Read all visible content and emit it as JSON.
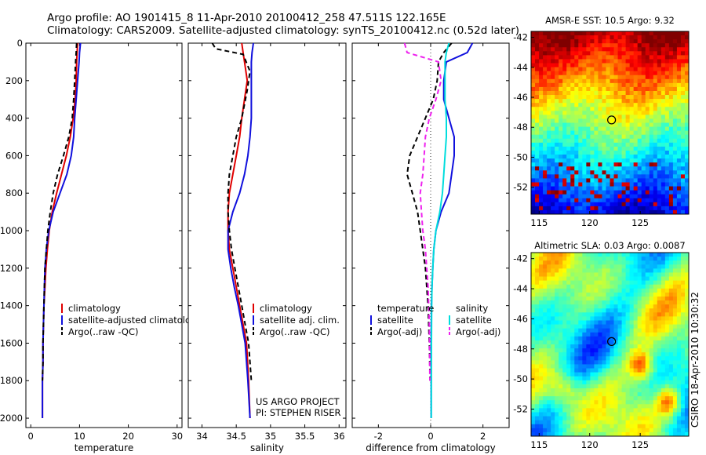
{
  "header": {
    "line1": "Argo profile: AO 1901415_8 11-Apr-2010 20100412_258 47.511S 122.165E",
    "line2": "Climatology: CARS2009. Satellite-adjusted climatology: synTS_20100412.nc (0.52d later)"
  },
  "colors": {
    "climatology": "#e00000",
    "satellite": "#1010dd",
    "argo": "#000000",
    "satellite_diff": "#00dddd",
    "argo_sal_diff": "#ee22ee"
  },
  "side_text": "CSIRO 18-Apr-2010 10:30:32",
  "project_text": [
    "US ARGO PROJECT",
    "PI: STEPHEN RISER"
  ],
  "chart_data": [
    {
      "id": "temperature",
      "type": "line",
      "xlabel": "temperature",
      "xlim": [
        -1,
        31
      ],
      "xticks": [
        0,
        10,
        20,
        30
      ],
      "ylim": [
        0,
        2050
      ],
      "yticks": [
        0,
        200,
        400,
        600,
        800,
        1000,
        1200,
        1400,
        1600,
        1800,
        2000
      ],
      "y_reversed": true,
      "legend": {
        "position": "bottom-center",
        "title": [],
        "entries": [
          "climatology",
          "satellite-adjusted climatology",
          "Argo(..raw -QC)"
        ]
      },
      "series": [
        {
          "name": "climatology",
          "style": "solid",
          "color_key": "climatology",
          "x": [
            9.6,
            9.5,
            9.4,
            9.3,
            9.1,
            8.7,
            8.1,
            7.3,
            6.3,
            5.3,
            4.4,
            3.8,
            3.4,
            3.1,
            2.9,
            2.7,
            2.6,
            2.5,
            2.5,
            2.4,
            2.4
          ],
          "y": [
            0,
            50,
            100,
            200,
            300,
            400,
            500,
            600,
            700,
            800,
            900,
            1000,
            1100,
            1200,
            1300,
            1400,
            1500,
            1600,
            1700,
            1800,
            2000
          ]
        },
        {
          "name": "satellite-adjusted climatology",
          "style": "solid",
          "color_key": "satellite",
          "x": [
            10.2,
            10.0,
            9.9,
            9.6,
            9.3,
            9.0,
            8.8,
            8.3,
            7.4,
            6.0,
            4.6,
            3.7,
            3.2,
            2.9,
            2.8,
            2.7,
            2.6,
            2.5,
            2.5,
            2.4,
            2.4
          ],
          "y": [
            0,
            50,
            100,
            200,
            300,
            400,
            500,
            600,
            700,
            800,
            900,
            1000,
            1100,
            1200,
            1300,
            1400,
            1500,
            1600,
            1700,
            1800,
            2000
          ]
        },
        {
          "name": "Argo(..raw -QC)",
          "style": "dashed",
          "color_key": "argo",
          "x": [
            9.4,
            9.3,
            9.2,
            9.0,
            8.8,
            8.5,
            7.8,
            6.7,
            5.5,
            4.6,
            4.0,
            3.5,
            3.2,
            2.9,
            2.8,
            2.7,
            2.6,
            2.5,
            2.5,
            2.4
          ],
          "y": [
            0,
            50,
            100,
            200,
            300,
            400,
            500,
            600,
            700,
            800,
            900,
            1000,
            1100,
            1200,
            1300,
            1400,
            1500,
            1600,
            1700,
            1800
          ]
        }
      ]
    },
    {
      "id": "salinity",
      "type": "line",
      "xlabel": "salinity",
      "xlim": [
        33.8,
        36.1
      ],
      "xticks": [
        34,
        34.5,
        35,
        35.5,
        36
      ],
      "ylim": [
        0,
        2050
      ],
      "yticks": [
        0,
        200,
        400,
        600,
        800,
        1000,
        1200,
        1400,
        1600,
        1800,
        2000
      ],
      "y_reversed": true,
      "legend": {
        "position": "bottom-center",
        "title": [],
        "entries": [
          "climatology",
          "satellite adj. clim.",
          "Argo(..raw -QC)"
        ]
      },
      "series": [
        {
          "name": "climatology",
          "style": "solid",
          "color_key": "climatology",
          "x": [
            34.58,
            34.6,
            34.62,
            34.66,
            34.62,
            34.58,
            34.55,
            34.5,
            34.45,
            34.4,
            34.38,
            34.38,
            34.4,
            34.45,
            34.5,
            34.55,
            34.6,
            34.65,
            34.68,
            34.7
          ],
          "y": [
            0,
            50,
            100,
            200,
            300,
            400,
            500,
            600,
            700,
            800,
            900,
            1000,
            1100,
            1200,
            1300,
            1400,
            1500,
            1600,
            1800,
            2000
          ]
        },
        {
          "name": "satellite adj. clim.",
          "style": "solid",
          "color_key": "satellite",
          "x": [
            34.75,
            34.73,
            34.72,
            34.72,
            34.72,
            34.72,
            34.7,
            34.67,
            34.62,
            34.55,
            34.45,
            34.38,
            34.38,
            34.42,
            34.47,
            34.53,
            34.58,
            34.63,
            34.67,
            34.7
          ],
          "y": [
            0,
            50,
            100,
            200,
            300,
            400,
            500,
            600,
            700,
            800,
            900,
            1000,
            1100,
            1200,
            1300,
            1400,
            1500,
            1600,
            1800,
            2000
          ]
        },
        {
          "name": "Argo(..raw -QC)",
          "style": "dashed",
          "color_key": "argo",
          "x": [
            34.15,
            34.2,
            34.6,
            34.7,
            34.66,
            34.58,
            34.5,
            34.45,
            34.4,
            34.38,
            34.38,
            34.4,
            34.43,
            34.48,
            34.53,
            34.58,
            34.63,
            34.68,
            34.72
          ],
          "y": [
            0,
            30,
            60,
            150,
            250,
            400,
            500,
            600,
            700,
            800,
            900,
            1000,
            1100,
            1200,
            1300,
            1400,
            1500,
            1600,
            1800
          ]
        }
      ]
    },
    {
      "id": "difference",
      "type": "line",
      "xlabel": "difference from climatology",
      "xlim": [
        -3,
        3
      ],
      "xticks": [
        -2,
        0,
        2
      ],
      "ylim": [
        0,
        2050
      ],
      "yticks": [
        0,
        200,
        400,
        600,
        800,
        1000,
        1200,
        1400,
        1600,
        1800,
        2000
      ],
      "y_reversed": true,
      "legend": {
        "position": "bottom-center",
        "title": [
          "temperature",
          "salinity"
        ],
        "entries": [
          "satellite",
          "Argo(-adj)",
          "satellite",
          "Argo(-adj)"
        ]
      },
      "series": [
        {
          "name": "satellite",
          "group": "temperature",
          "style": "solid",
          "color_key": "satellite",
          "x": [
            1.6,
            1.4,
            0.6,
            0.5,
            0.5,
            0.7,
            0.9,
            0.9,
            0.8,
            0.7,
            0.4,
            0.2,
            0.12,
            0.08,
            0.05,
            0.03,
            0.02,
            0.02,
            0.02
          ],
          "y": [
            0,
            50,
            100,
            200,
            300,
            400,
            500,
            600,
            700,
            800,
            900,
            1000,
            1100,
            1200,
            1300,
            1400,
            1600,
            1800,
            2000
          ]
        },
        {
          "name": "Argo(-adj)",
          "group": "temperature",
          "style": "dashed",
          "color_key": "argo",
          "x": [
            0.8,
            0.5,
            0.3,
            0.25,
            0.1,
            -0.2,
            -0.5,
            -0.8,
            -0.9,
            -0.7,
            -0.5,
            -0.4,
            -0.3,
            -0.2,
            -0.15,
            -0.1,
            -0.05,
            -0.02
          ],
          "y": [
            0,
            50,
            100,
            200,
            300,
            400,
            500,
            600,
            700,
            800,
            900,
            1000,
            1100,
            1200,
            1300,
            1400,
            1600,
            1800
          ]
        },
        {
          "name": "satellite",
          "group": "salinity",
          "style": "solid",
          "color_key": "satellite_diff",
          "x": [
            0.7,
            0.6,
            0.55,
            0.55,
            0.55,
            0.6,
            0.6,
            0.55,
            0.5,
            0.45,
            0.35,
            0.2,
            0.12,
            0.08,
            0.05,
            0.04,
            0.03,
            0.02
          ],
          "y": [
            0,
            50,
            100,
            200,
            300,
            400,
            500,
            600,
            700,
            800,
            900,
            1000,
            1100,
            1200,
            1300,
            1400,
            1600,
            2000
          ]
        },
        {
          "name": "Argo(-adj)",
          "group": "salinity",
          "style": "dashed",
          "color_key": "argo_sal_diff",
          "x": [
            -1.0,
            -0.9,
            0.3,
            0.4,
            0.2,
            -0.05,
            -0.2,
            -0.25,
            -0.3,
            -0.4,
            -0.35,
            -0.3,
            -0.2,
            -0.15,
            -0.1,
            -0.05,
            -0.03
          ],
          "y": [
            0,
            50,
            100,
            200,
            300,
            400,
            500,
            600,
            700,
            800,
            900,
            1000,
            1100,
            1200,
            1300,
            1500,
            1800
          ]
        }
      ]
    },
    {
      "id": "sst-map",
      "type": "heatmap",
      "title": "AMSR-E SST: 10.5  Argo: 9.32",
      "xlim": [
        114.2,
        129.8
      ],
      "ylim": [
        -53.8,
        -41.6
      ],
      "xticks": [
        115,
        120,
        125
      ],
      "yticks": [
        -42,
        -44,
        -46,
        -48,
        -50,
        -52
      ],
      "profile_location": {
        "lon": 122.165,
        "lat": -47.511
      },
      "colormap": "jet"
    },
    {
      "id": "sla-map",
      "type": "heatmap",
      "title": "Altimetric SLA: 0.03  Argo: 0.0087",
      "xlim": [
        114.2,
        129.8
      ],
      "ylim": [
        -53.8,
        -41.6
      ],
      "xticks": [
        115,
        120,
        125
      ],
      "yticks": [
        -42,
        -44,
        -46,
        -48,
        -50,
        -52
      ],
      "profile_location": {
        "lon": 122.165,
        "lat": -47.511
      },
      "colormap": "jet"
    }
  ]
}
